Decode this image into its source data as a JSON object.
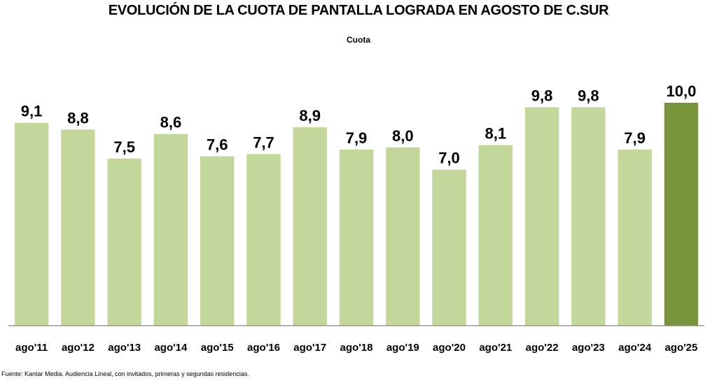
{
  "chart_data": {
    "type": "bar",
    "title": "EVOLUCIÓN DE LA CUOTA DE PANTALLA LOGRADA EN AGOSTO DE C.SUR",
    "subtitle": "Cuota",
    "xlabel": "",
    "ylabel": "",
    "ylim": [
      0,
      10
    ],
    "grid": false,
    "categories": [
      "ago'11",
      "ago'12",
      "ago'13",
      "ago'14",
      "ago'15",
      "ago'16",
      "ago'17",
      "ago'18",
      "ago'19",
      "ago'20",
      "ago'21",
      "ago'22",
      "ago'23",
      "ago'24",
      "ago'25"
    ],
    "values": [
      9.1,
      8.8,
      7.5,
      8.6,
      7.6,
      7.7,
      8.9,
      7.9,
      8.0,
      7.0,
      8.1,
      9.8,
      9.8,
      7.9,
      10.0
    ],
    "value_labels": [
      "9,1",
      "8,8",
      "7,5",
      "8,6",
      "7,6",
      "7,7",
      "8,9",
      "7,9",
      "8,0",
      "7,0",
      "8,1",
      "9,8",
      "9,8",
      "7,9",
      "10,0"
    ],
    "highlight_index": 14,
    "colors": {
      "bar": "#c4d79b",
      "highlight": "#77933c",
      "axis": "#868686"
    }
  },
  "footer": {
    "source": "Fuente: Kantar Media. Audiencia Lineal, con invitados, primeras y segundas residencias."
  }
}
